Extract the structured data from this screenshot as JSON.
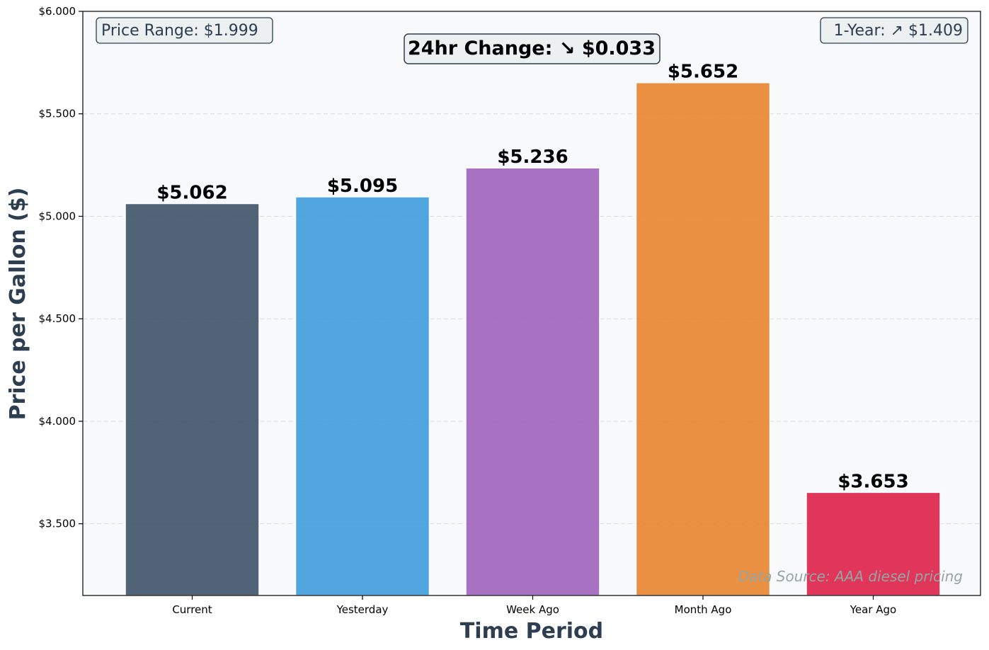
{
  "chart_data": {
    "type": "bar",
    "xlabel": "Time Period",
    "ylabel": "Price per Gallon ($)",
    "categories": [
      "Current",
      "Yesterday",
      "Week Ago",
      "Month Ago",
      "Year Ago"
    ],
    "values": [
      5.062,
      5.095,
      5.236,
      5.652,
      3.653
    ],
    "value_labels": [
      "$5.062",
      "$5.095",
      "$5.236",
      "$5.652",
      "$3.653"
    ],
    "colors": [
      "#34495e",
      "#3498db",
      "#9b59b6",
      "#e67e22",
      "#dc143c"
    ],
    "ylim": [
      3.15,
      6.0
    ],
    "yticks": [
      3.5,
      4.0,
      4.5,
      5.0,
      5.5,
      6.0
    ],
    "ytick_labels": [
      "$3.500",
      "$4.000",
      "$4.500",
      "$5.000",
      "$5.500",
      "$6.000"
    ],
    "grid": "horizontal-dashed",
    "background": "#f8f9fa",
    "annotations": {
      "price_range": "Price Range: $1.999",
      "change_24hr": "24hr Change: ↘ $0.033",
      "one_year": "1-Year: ↗ $1.409",
      "data_source": "Data Source: AAA diesel pricing"
    }
  }
}
